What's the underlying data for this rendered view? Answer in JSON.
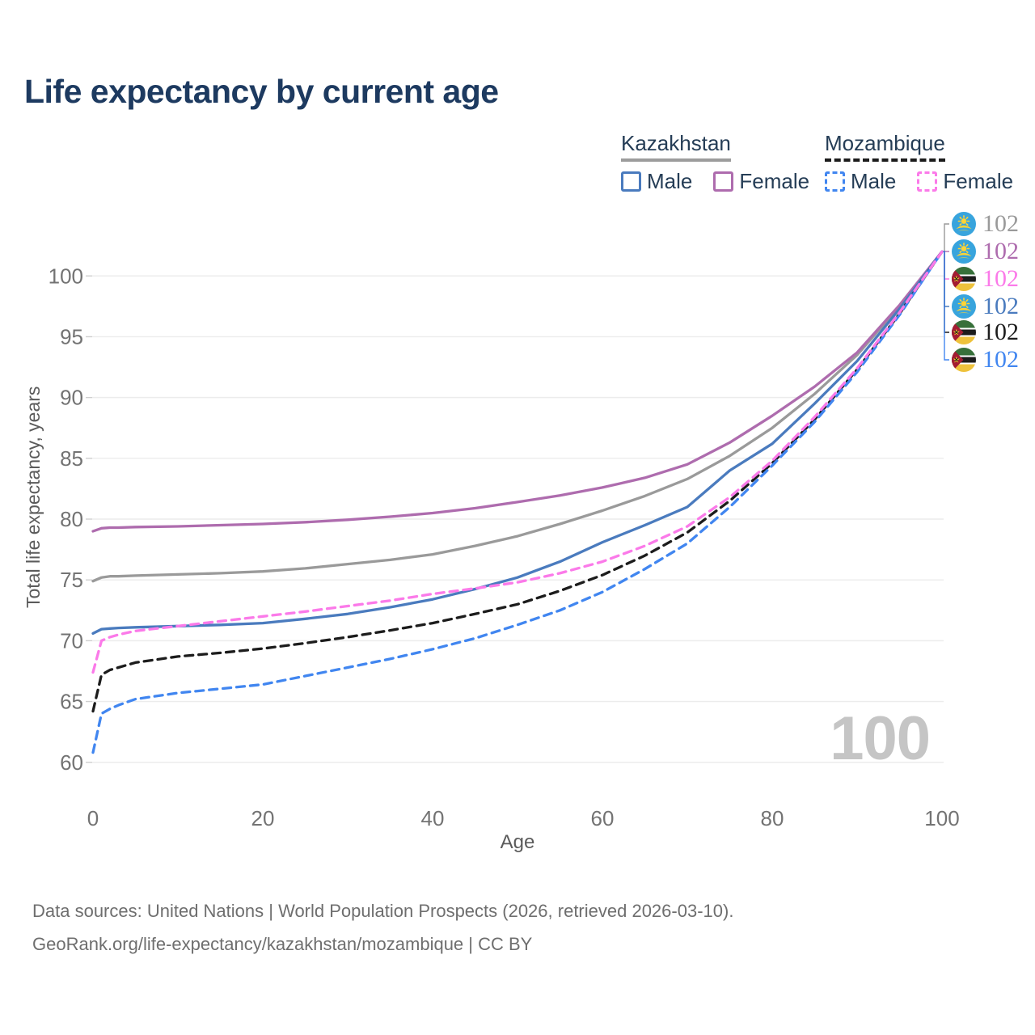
{
  "title": "Life expectancy by current age",
  "legend": {
    "groups": [
      {
        "country": "Kazakhstan",
        "underline_style": "solid",
        "underline_color": "#9c9c9c",
        "items": [
          {
            "label": "Male",
            "color": "#4a7bbe",
            "dashed": false
          },
          {
            "label": "Female",
            "color": "#ae6cae",
            "dashed": false
          }
        ]
      },
      {
        "country": "Mozambique",
        "underline_style": "dashed",
        "underline_color": "#1c1c1c",
        "items": [
          {
            "label": "Male",
            "color": "#4186f0",
            "dashed": true
          },
          {
            "label": "Female",
            "color": "#fb7ae9",
            "dashed": true
          }
        ]
      }
    ]
  },
  "chart_data": {
    "type": "line",
    "title": "Life expectancy by current age",
    "xlabel": "Age",
    "ylabel": "Total life expectancy, years",
    "x_ticks": [
      0,
      20,
      40,
      60,
      80,
      100
    ],
    "y_ticks": [
      60,
      65,
      70,
      75,
      80,
      85,
      90,
      95,
      100
    ],
    "xlim": [
      0,
      100
    ],
    "ylim": [
      59,
      103
    ],
    "grid": "horizontal-only",
    "x": [
      0,
      1,
      2,
      3,
      5,
      10,
      15,
      20,
      25,
      30,
      35,
      40,
      45,
      50,
      55,
      60,
      65,
      70,
      75,
      80,
      85,
      90,
      95,
      100
    ],
    "series": [
      {
        "name": "Kazakhstan Total",
        "country": "kz",
        "color": "#9a9a9a",
        "dashed": false,
        "values": [
          74.9,
          75.2,
          75.3,
          75.3,
          75.35,
          75.45,
          75.55,
          75.7,
          75.95,
          76.3,
          76.65,
          77.1,
          77.8,
          78.6,
          79.6,
          80.7,
          81.9,
          83.3,
          85.2,
          87.5,
          90.3,
          93.5,
          97.5,
          102
        ]
      },
      {
        "name": "Kazakhstan Female",
        "country": "kz",
        "color": "#ae6cae",
        "dashed": false,
        "values": [
          79.0,
          79.25,
          79.3,
          79.3,
          79.35,
          79.4,
          79.5,
          79.6,
          79.75,
          79.95,
          80.2,
          80.5,
          80.9,
          81.4,
          81.95,
          82.6,
          83.4,
          84.5,
          86.3,
          88.5,
          90.9,
          93.7,
          97.6,
          102
        ]
      },
      {
        "name": "Kazakhstan Male",
        "country": "kz",
        "color": "#4a7bbe",
        "dashed": false,
        "values": [
          70.6,
          70.95,
          71.0,
          71.05,
          71.1,
          71.2,
          71.3,
          71.45,
          71.8,
          72.2,
          72.75,
          73.4,
          74.25,
          75.2,
          76.5,
          78.1,
          79.5,
          81.0,
          84.0,
          86.2,
          89.5,
          93.0,
          97.3,
          102
        ]
      },
      {
        "name": "Mozambique Total",
        "country": "mz",
        "color": "#1c1c1c",
        "dashed": true,
        "values": [
          64.2,
          67.2,
          67.6,
          67.8,
          68.2,
          68.7,
          69.0,
          69.35,
          69.8,
          70.3,
          70.85,
          71.45,
          72.2,
          73.0,
          74.1,
          75.4,
          77.0,
          78.9,
          81.5,
          84.6,
          88.2,
          92.3,
          96.9,
          102
        ]
      },
      {
        "name": "Mozambique Male",
        "country": "mz",
        "color": "#4186f0",
        "dashed": true,
        "values": [
          60.8,
          64.0,
          64.4,
          64.7,
          65.2,
          65.7,
          66.05,
          66.4,
          67.1,
          67.8,
          68.5,
          69.3,
          70.2,
          71.3,
          72.5,
          74.0,
          75.9,
          78.0,
          81.0,
          84.4,
          88.0,
          92.1,
          96.8,
          102
        ]
      },
      {
        "name": "Mozambique Female",
        "country": "mz",
        "color": "#fb7ae9",
        "dashed": true,
        "values": [
          67.4,
          70.0,
          70.3,
          70.5,
          70.8,
          71.2,
          71.6,
          72.0,
          72.4,
          72.85,
          73.3,
          73.85,
          74.3,
          74.8,
          75.55,
          76.5,
          77.8,
          79.4,
          81.8,
          84.8,
          88.4,
          92.4,
          97.0,
          102
        ]
      }
    ],
    "end_labels": [
      {
        "flag": "kz",
        "series": "Kazakhstan Total",
        "value": "102",
        "color": "#9a9a9a"
      },
      {
        "flag": "kz",
        "series": "Kazakhstan Female",
        "value": "102",
        "color": "#ae6cae"
      },
      {
        "flag": "mz",
        "series": "Mozambique Female",
        "value": "102",
        "color": "#fb7ae9"
      },
      {
        "flag": "kz",
        "series": "Kazakhstan Male",
        "value": "102",
        "color": "#4a7bbe"
      },
      {
        "flag": "mz",
        "series": "Mozambique Total",
        "value": "102",
        "color": "#1c1c1c"
      },
      {
        "flag": "mz",
        "series": "Mozambique Male",
        "value": "102",
        "color": "#4186f0"
      }
    ],
    "watermark_age": "100",
    "legend_position": "top-right"
  },
  "footer": {
    "line1": "Data sources: United Nations | World Population Prospects (2026, retrieved 2026-03-10).",
    "line2": "GeoRank.org/life-expectancy/kazakhstan/mozambique | CC BY"
  }
}
